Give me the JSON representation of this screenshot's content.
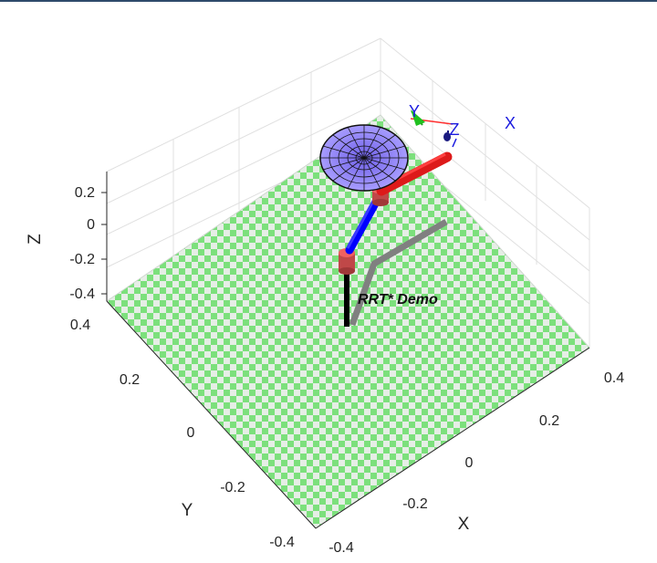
{
  "figure": {
    "annotation": "RRT* Demo",
    "axes": {
      "z": {
        "label": "Z",
        "ticks": [
          "0.2",
          "0",
          "-0.2",
          "-0.4"
        ],
        "range": [
          -0.4,
          0.3
        ]
      },
      "y": {
        "label": "Y",
        "ticks": [
          "0.4",
          "0.2",
          "0",
          "-0.2",
          "-0.4"
        ],
        "range": [
          -0.4,
          0.4
        ]
      },
      "x": {
        "label": "X",
        "ticks": [
          "0.4",
          "0.2",
          "0",
          "-0.2",
          "-0.4"
        ],
        "range": [
          -0.4,
          0.4
        ]
      }
    },
    "end_effector_frame": {
      "x_label": "X",
      "y_label": "Y",
      "z_label": "Z"
    },
    "colors": {
      "floor_light": "#e6eee6",
      "floor_green": "#7ce07c",
      "link_upper": "#0000ff",
      "link_lower": "#ff2020",
      "joint": "#f06060",
      "base": "#000000",
      "path": "#808080",
      "disk": "#8a7cf4",
      "frame_x": "#ff3030",
      "frame_y": "#20c020",
      "frame_z": "#1a1a80"
    },
    "grid": true
  }
}
